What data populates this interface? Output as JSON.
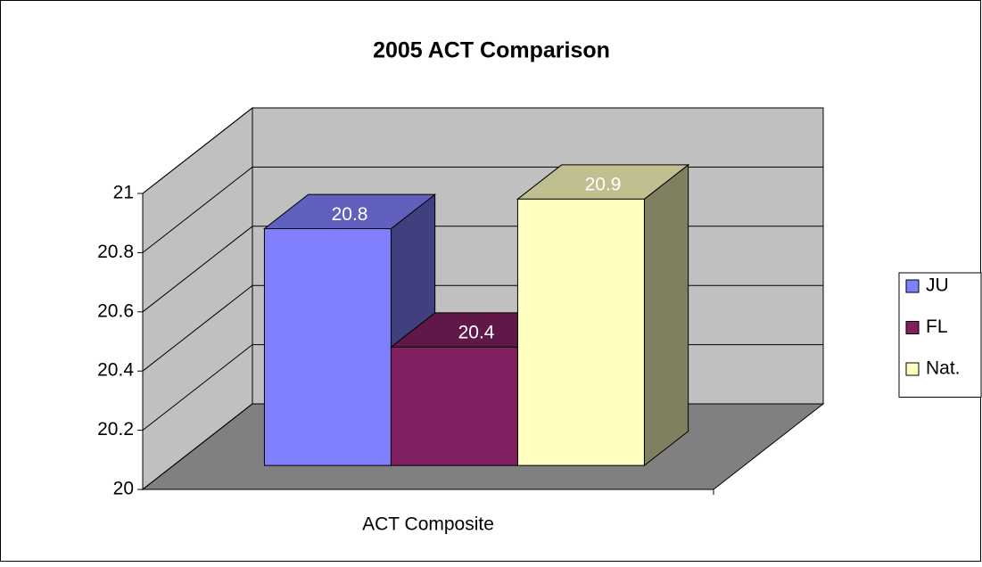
{
  "chart_data": {
    "type": "bar",
    "title": "2005 ACT Comparison",
    "categories": [
      "ACT Composite"
    ],
    "series": [
      {
        "name": "JU",
        "color": "#8080ff",
        "values": [
          20.8
        ]
      },
      {
        "name": "FL",
        "color": "#802060",
        "values": [
          20.4
        ]
      },
      {
        "name": "Nat.",
        "color": "#ffffc0",
        "values": [
          20.9
        ]
      }
    ],
    "ylim": [
      20,
      21
    ],
    "yticks": [
      20,
      20.2,
      20.4,
      20.6,
      20.8,
      21
    ],
    "grid": true,
    "legend": "right",
    "data_labels": true
  }
}
